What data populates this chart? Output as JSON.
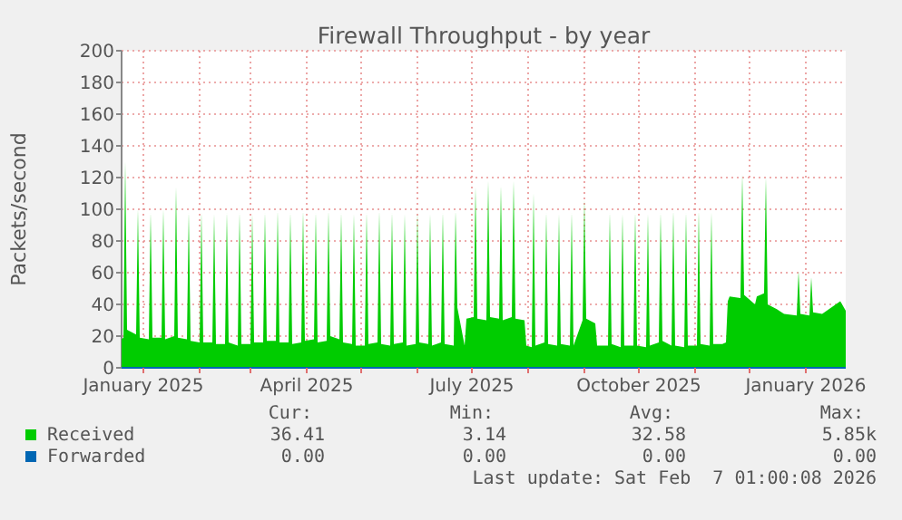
{
  "chart_data": {
    "type": "area",
    "title": "Firewall Throughput - by year",
    "ylabel": "Packets/second",
    "xlim": [
      "2024-12-20",
      "2026-01-23"
    ],
    "xticks": [
      {
        "value": "2025-01",
        "label": "January 2025"
      },
      {
        "value": "2025-02",
        "label": null
      },
      {
        "value": "2025-03",
        "label": null
      },
      {
        "value": "2025-04",
        "label": "April 2025"
      },
      {
        "value": "2025-05",
        "label": null
      },
      {
        "value": "2025-06",
        "label": null
      },
      {
        "value": "2025-07",
        "label": "July 2025"
      },
      {
        "value": "2025-08",
        "label": null
      },
      {
        "value": "2025-09",
        "label": null
      },
      {
        "value": "2025-10",
        "label": "October 2025"
      },
      {
        "value": "2025-11",
        "label": null
      },
      {
        "value": "2025-12",
        "label": null
      },
      {
        "value": "2026-01",
        "label": "January 2026"
      }
    ],
    "ylim": [
      0,
      200
    ],
    "yticks": [
      0,
      20,
      40,
      60,
      80,
      100,
      120,
      140,
      160,
      180,
      200
    ],
    "grid": true,
    "legend": "bottom",
    "series": [
      {
        "name": "Received",
        "color": "#00cc00",
        "x": [
          "2024-12-20",
          "2024-12-21",
          "2024-12-22",
          "2024-12-23",
          "2024-12-28",
          "2024-12-29",
          "2024-12-30",
          "2025-01-04",
          "2025-01-05",
          "2025-01-06",
          "2025-01-11",
          "2025-01-12",
          "2025-01-13",
          "2025-01-18",
          "2025-01-19",
          "2025-01-20",
          "2025-01-25",
          "2025-01-26",
          "2025-01-27",
          "2025-02-01",
          "2025-02-02",
          "2025-02-03",
          "2025-02-08",
          "2025-02-09",
          "2025-02-10",
          "2025-02-15",
          "2025-02-16",
          "2025-02-17",
          "2025-02-22",
          "2025-02-23",
          "2025-02-24",
          "2025-03-01",
          "2025-03-02",
          "2025-03-03",
          "2025-03-08",
          "2025-03-09",
          "2025-03-10",
          "2025-03-15",
          "2025-03-16",
          "2025-03-17",
          "2025-03-22",
          "2025-03-23",
          "2025-03-24",
          "2025-03-29",
          "2025-03-30",
          "2025-03-31",
          "2025-04-05",
          "2025-04-06",
          "2025-04-07",
          "2025-04-12",
          "2025-04-13",
          "2025-04-14",
          "2025-04-19",
          "2025-04-20",
          "2025-04-21",
          "2025-04-26",
          "2025-04-27",
          "2025-04-28",
          "2025-05-03",
          "2025-05-04",
          "2025-05-05",
          "2025-05-10",
          "2025-05-11",
          "2025-05-12",
          "2025-05-17",
          "2025-05-18",
          "2025-05-19",
          "2025-05-24",
          "2025-05-25",
          "2025-05-26",
          "2025-05-31",
          "2025-06-01",
          "2025-06-02",
          "2025-06-07",
          "2025-06-08",
          "2025-06-09",
          "2025-06-14",
          "2025-06-15",
          "2025-06-16",
          "2025-06-21",
          "2025-06-22",
          "2025-06-23",
          "2025-06-27",
          "2025-06-28",
          "2025-07-02",
          "2025-07-03",
          "2025-07-04",
          "2025-07-09",
          "2025-07-10",
          "2025-07-11",
          "2025-07-16",
          "2025-07-17",
          "2025-07-18",
          "2025-07-23",
          "2025-07-24",
          "2025-07-25",
          "2025-07-30",
          "2025-07-31",
          "2025-08-03",
          "2025-08-04",
          "2025-08-05",
          "2025-08-10",
          "2025-08-11",
          "2025-08-12",
          "2025-08-17",
          "2025-08-18",
          "2025-08-19",
          "2025-08-24",
          "2025-08-25",
          "2025-08-26",
          "2025-08-31",
          "2025-09-01",
          "2025-09-02",
          "2025-09-07",
          "2025-09-08",
          "2025-09-14",
          "2025-09-15",
          "2025-09-16",
          "2025-09-21",
          "2025-09-22",
          "2025-09-23",
          "2025-09-28",
          "2025-09-29",
          "2025-09-30",
          "2025-10-05",
          "2025-10-06",
          "2025-10-07",
          "2025-10-12",
          "2025-10-13",
          "2025-10-14",
          "2025-10-19",
          "2025-10-20",
          "2025-10-21",
          "2025-10-26",
          "2025-10-27",
          "2025-10-28",
          "2025-11-02",
          "2025-11-03",
          "2025-11-04",
          "2025-11-09",
          "2025-11-10",
          "2025-11-11",
          "2025-11-16",
          "2025-11-18",
          "2025-11-19",
          "2025-11-20",
          "2025-11-26",
          "2025-11-27",
          "2025-11-28",
          "2025-12-04",
          "2025-12-05",
          "2025-12-09",
          "2025-12-10",
          "2025-12-11",
          "2025-12-16",
          "2025-12-20",
          "2025-12-27",
          "2025-12-28",
          "2025-12-29",
          "2026-01-03",
          "2026-01-04",
          "2026-01-05",
          "2026-01-10",
          "2026-01-15",
          "2026-01-20",
          "2026-01-23"
        ],
        "values": [
          18,
          19,
          130,
          24,
          21,
          100,
          19,
          18,
          98,
          19,
          19,
          100,
          18,
          20,
          114,
          19,
          18,
          98,
          17,
          16,
          98,
          16,
          16,
          97,
          15,
          15,
          98,
          16,
          14,
          98,
          15,
          15,
          97,
          16,
          16,
          98,
          17,
          17,
          99,
          16,
          16,
          98,
          15,
          16,
          99,
          17,
          18,
          98,
          16,
          17,
          99,
          20,
          18,
          98,
          16,
          15,
          97,
          14,
          14,
          98,
          15,
          16,
          99,
          15,
          14,
          98,
          15,
          16,
          97,
          14,
          15,
          98,
          16,
          15,
          97,
          14,
          16,
          98,
          15,
          14,
          99,
          38,
          14,
          31,
          32,
          114,
          31,
          30,
          118,
          32,
          31,
          115,
          30,
          32,
          118,
          31,
          30,
          14,
          13,
          110,
          14,
          16,
          98,
          15,
          14,
          97,
          15,
          14,
          98,
          14,
          30,
          106,
          31,
          28,
          14,
          14,
          98,
          15,
          13,
          97,
          14,
          14,
          98,
          14,
          13,
          97,
          14,
          16,
          98,
          17,
          14,
          99,
          14,
          13,
          98,
          14,
          14,
          99,
          15,
          14,
          98,
          15,
          15,
          16,
          42,
          45,
          44,
          122,
          46,
          40,
          45,
          47,
          120,
          40,
          37,
          34,
          33,
          61,
          34,
          33,
          57,
          35,
          34,
          38,
          42,
          36
        ]
      },
      {
        "name": "Forwarded",
        "color": "#0066b3",
        "type": "line",
        "x": [
          "2024-12-20",
          "2026-01-23"
        ],
        "values": [
          0,
          0
        ]
      }
    ],
    "annotations": [
      "Cur:",
      "Min:",
      "Avg:",
      "Max:",
      "36.41",
      "3.14",
      "32.58",
      "5.85k",
      "0.00",
      "0.00",
      "0.00",
      "0.00",
      "Last update: Sat Feb  7 01:00:08 2026"
    ]
  }
}
